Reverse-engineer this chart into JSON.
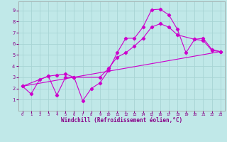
{
  "xlabel": "Windchill (Refroidissement éolien,°C)",
  "bg_color": "#c0e8e8",
  "grid_color": "#a8d4d4",
  "line_color": "#cc00cc",
  "label_color": "#880088",
  "axis_label_bg": "#6600aa",
  "xlim": [
    -0.5,
    23.5
  ],
  "ylim": [
    0,
    9.8
  ],
  "xticks": [
    0,
    1,
    2,
    3,
    4,
    5,
    6,
    7,
    8,
    9,
    10,
    11,
    12,
    13,
    14,
    15,
    16,
    17,
    18,
    19,
    20,
    21,
    22,
    23
  ],
  "yticks": [
    1,
    2,
    3,
    4,
    5,
    6,
    7,
    8,
    9
  ],
  "line1_x": [
    0,
    1,
    2,
    3,
    4,
    5,
    6,
    7,
    8,
    9,
    10,
    11,
    12,
    13,
    14,
    15,
    16,
    17,
    18,
    19,
    20,
    21,
    22,
    23
  ],
  "line1_y": [
    2.2,
    1.5,
    2.8,
    3.1,
    1.4,
    3.0,
    3.0,
    0.9,
    2.0,
    2.5,
    3.6,
    5.2,
    6.5,
    6.5,
    7.5,
    9.05,
    9.1,
    8.6,
    7.3,
    5.2,
    6.4,
    6.3,
    5.4,
    5.3
  ],
  "line2_x": [
    0,
    3,
    4,
    5,
    6,
    9,
    10,
    11,
    12,
    13,
    14,
    15,
    16,
    17,
    18,
    20,
    21,
    22,
    23
  ],
  "line2_y": [
    2.2,
    3.1,
    3.2,
    3.3,
    3.0,
    3.0,
    3.8,
    4.8,
    5.2,
    5.8,
    6.5,
    7.5,
    7.8,
    7.5,
    6.8,
    6.4,
    6.5,
    5.5,
    5.3
  ],
  "line3_x": [
    0,
    23
  ],
  "line3_y": [
    2.2,
    5.3
  ]
}
